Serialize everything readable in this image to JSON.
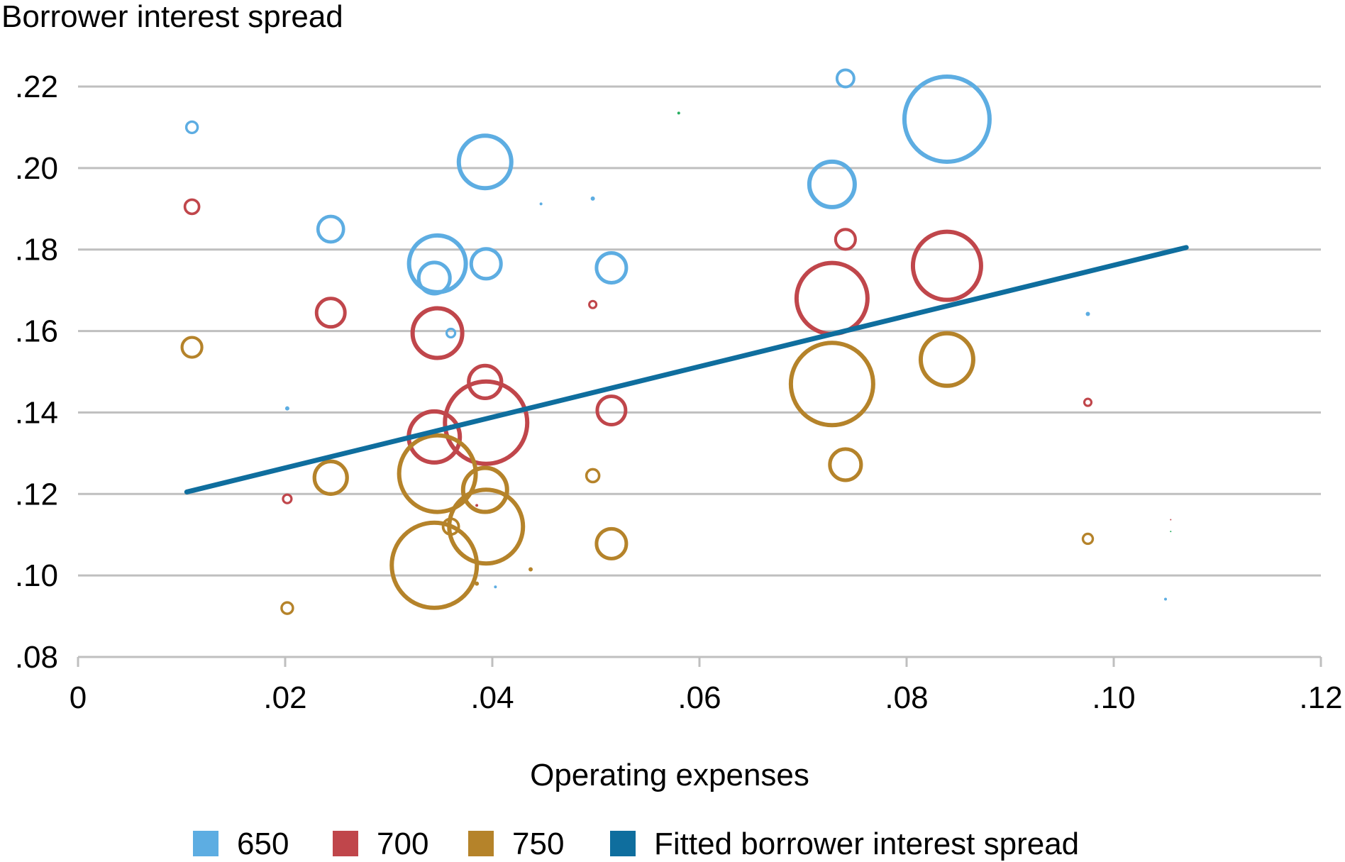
{
  "chart_data": {
    "type": "scatter",
    "title": "",
    "ylabel": "Borrower interest spread",
    "xlabel": "Operating expenses",
    "xlim": [
      0,
      0.12
    ],
    "ylim": [
      0.08,
      0.22
    ],
    "x_ticks": [
      {
        "value": 0,
        "label": "0"
      },
      {
        "value": 0.02,
        "label": ".02"
      },
      {
        "value": 0.04,
        "label": ".04"
      },
      {
        "value": 0.06,
        "label": ".06"
      },
      {
        "value": 0.08,
        "label": ".08"
      },
      {
        "value": 0.1,
        "label": ".10"
      },
      {
        "value": 0.12,
        "label": ".12"
      }
    ],
    "y_ticks": [
      {
        "value": 0.08,
        "label": ".08"
      },
      {
        "value": 0.1,
        "label": ".10"
      },
      {
        "value": 0.12,
        "label": ".12"
      },
      {
        "value": 0.14,
        "label": ".14"
      },
      {
        "value": 0.16,
        "label": ".16"
      },
      {
        "value": 0.18,
        "label": ".18"
      },
      {
        "value": 0.2,
        "label": ".20"
      },
      {
        "value": 0.22,
        "label": ".22"
      }
    ],
    "grid": true,
    "legend_position": "bottom",
    "series": [
      {
        "name": "650",
        "color": "#5DADE2",
        "points": [
          {
            "x": 0.011,
            "y": 0.21,
            "size": 8
          },
          {
            "x": 0.0244,
            "y": 0.185,
            "size": 18
          },
          {
            "x": 0.0202,
            "y": 0.141,
            "size": 3
          },
          {
            "x": 0.0347,
            "y": 0.1765,
            "size": 40
          },
          {
            "x": 0.0344,
            "y": 0.173,
            "size": 22
          },
          {
            "x": 0.0393,
            "y": 0.2015,
            "size": 37
          },
          {
            "x": 0.0394,
            "y": 0.1765,
            "size": 21
          },
          {
            "x": 0.036,
            "y": 0.1595,
            "size": 6
          },
          {
            "x": 0.0447,
            "y": 0.1912,
            "size": 2
          },
          {
            "x": 0.0497,
            "y": 0.1925,
            "size": 3
          },
          {
            "x": 0.0515,
            "y": 0.1755,
            "size": 21
          },
          {
            "x": 0.0403,
            "y": 0.0972,
            "size": 2
          },
          {
            "x": 0.0741,
            "y": 0.222,
            "size": 12
          },
          {
            "x": 0.0728,
            "y": 0.196,
            "size": 32
          },
          {
            "x": 0.0839,
            "y": 0.212,
            "size": 60
          },
          {
            "x": 0.0975,
            "y": 0.1642,
            "size": 3
          },
          {
            "x": 0.105,
            "y": 0.0942,
            "size": 2
          }
        ]
      },
      {
        "name": "700",
        "color": "#C0464B",
        "points": [
          {
            "x": 0.011,
            "y": 0.1905,
            "size": 10
          },
          {
            "x": 0.0244,
            "y": 0.1645,
            "size": 20
          },
          {
            "x": 0.0202,
            "y": 0.1188,
            "size": 6
          },
          {
            "x": 0.0347,
            "y": 0.1595,
            "size": 35
          },
          {
            "x": 0.0344,
            "y": 0.134,
            "size": 36
          },
          {
            "x": 0.0393,
            "y": 0.1475,
            "size": 23
          },
          {
            "x": 0.0394,
            "y": 0.1375,
            "size": 58
          },
          {
            "x": 0.036,
            "y": 0.1365,
            "size": 3
          },
          {
            "x": 0.0385,
            "y": 0.1172,
            "size": 2
          },
          {
            "x": 0.0497,
            "y": 0.1665,
            "size": 5
          },
          {
            "x": 0.0515,
            "y": 0.1405,
            "size": 20
          },
          {
            "x": 0.0741,
            "y": 0.1825,
            "size": 14
          },
          {
            "x": 0.0728,
            "y": 0.168,
            "size": 50
          },
          {
            "x": 0.0839,
            "y": 0.176,
            "size": 48
          },
          {
            "x": 0.0975,
            "y": 0.1425,
            "size": 5
          },
          {
            "x": 0.1055,
            "y": 0.1137,
            "size": 1
          }
        ]
      },
      {
        "name": "750",
        "color": "#B5832A",
        "points": [
          {
            "x": 0.011,
            "y": 0.156,
            "size": 14
          },
          {
            "x": 0.0244,
            "y": 0.124,
            "size": 23
          },
          {
            "x": 0.0202,
            "y": 0.092,
            "size": 8
          },
          {
            "x": 0.0347,
            "y": 0.125,
            "size": 54
          },
          {
            "x": 0.0344,
            "y": 0.1025,
            "size": 60
          },
          {
            "x": 0.0393,
            "y": 0.121,
            "size": 31
          },
          {
            "x": 0.0394,
            "y": 0.112,
            "size": 52
          },
          {
            "x": 0.036,
            "y": 0.112,
            "size": 11
          },
          {
            "x": 0.0385,
            "y": 0.098,
            "size": 3
          },
          {
            "x": 0.0437,
            "y": 0.1015,
            "size": 3
          },
          {
            "x": 0.0497,
            "y": 0.1245,
            "size": 9
          },
          {
            "x": 0.0515,
            "y": 0.1078,
            "size": 21
          },
          {
            "x": 0.0741,
            "y": 0.1272,
            "size": 22
          },
          {
            "x": 0.0728,
            "y": 0.147,
            "size": 58
          },
          {
            "x": 0.0839,
            "y": 0.153,
            "size": 37
          },
          {
            "x": 0.0975,
            "y": 0.109,
            "size": 7
          }
        ]
      },
      {
        "name": "",
        "color": "#27AE60",
        "points": [
          {
            "x": 0.058,
            "y": 0.2135,
            "size": 2
          },
          {
            "x": 0.1055,
            "y": 0.1108,
            "size": 1
          }
        ]
      },
      {
        "name": "Fitted borrower interest spread",
        "type": "line",
        "color": "#0F6E9E",
        "points": [
          {
            "x": 0.0105,
            "y": 0.1205
          },
          {
            "x": 0.107,
            "y": 0.1805
          }
        ]
      }
    ]
  }
}
